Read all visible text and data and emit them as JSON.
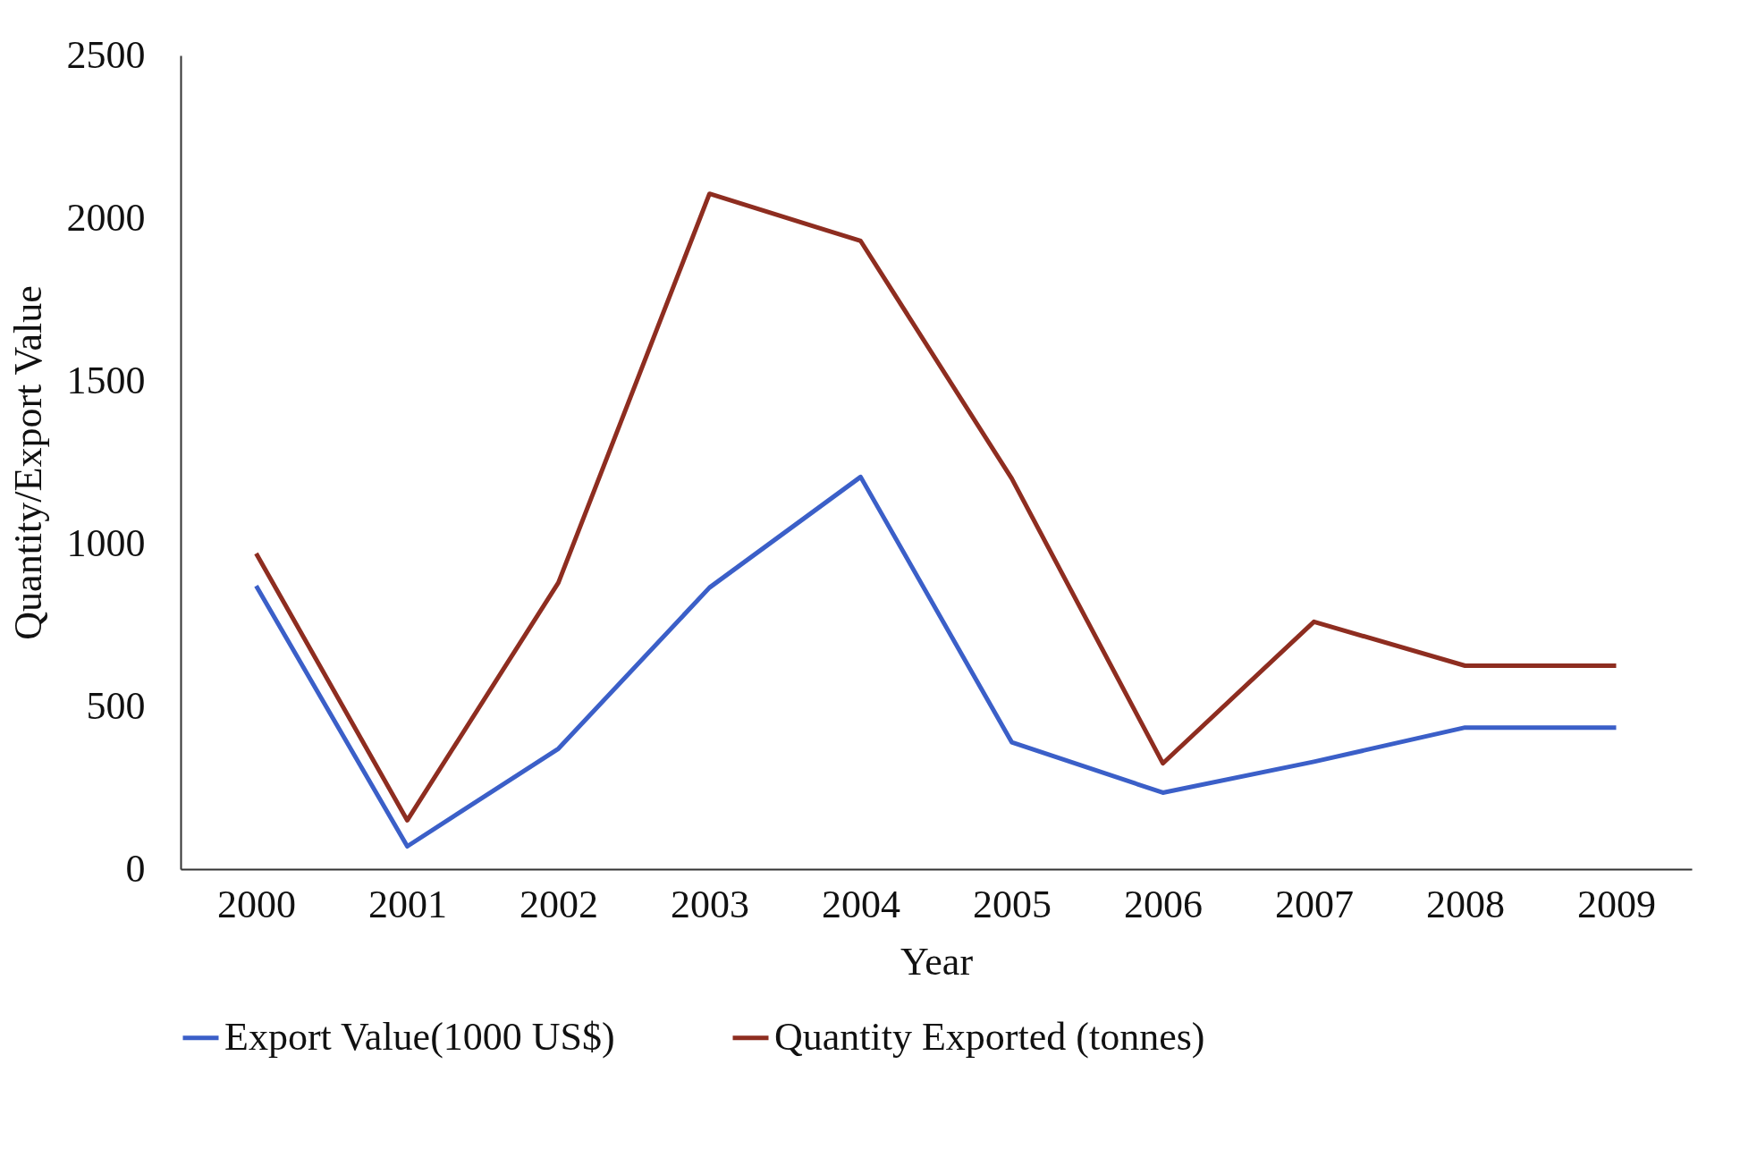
{
  "chart_data": {
    "type": "line",
    "xlabel": "Year",
    "ylabel": "Quantity/Export Value",
    "categories": [
      "2000",
      "2001",
      "2002",
      "2003",
      "2004",
      "2005",
      "2006",
      "2007",
      "2008",
      "2009"
    ],
    "series": [
      {
        "name": "Export Value(1000 US$)",
        "color": "#3b5fc8",
        "values": [
          870,
          70,
          370,
          865,
          1205,
          390,
          235,
          330,
          435,
          435
        ]
      },
      {
        "name": "Quantity Exported (tonnes)",
        "color": "#8e2d20",
        "values": [
          970,
          150,
          880,
          2075,
          1930,
          1200,
          325,
          760,
          625,
          625
        ]
      }
    ],
    "ylim": [
      0,
      2500
    ],
    "yticks": [
      0,
      500,
      1000,
      1500,
      2000,
      2500
    ],
    "grid": false,
    "legend": "bottom",
    "marker": "none",
    "line_style": "solid"
  }
}
